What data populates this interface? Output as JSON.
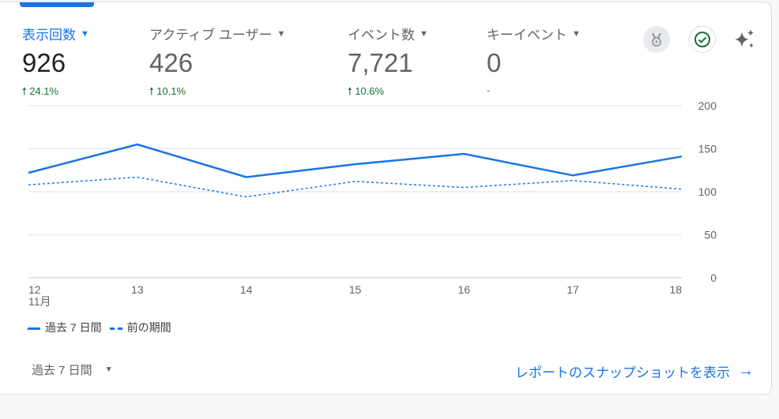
{
  "metrics": [
    {
      "label": "表示回数",
      "value": "926",
      "change": "24.1%",
      "direction": "up"
    },
    {
      "label": "アクティブ ユーザー",
      "value": "426",
      "change": "10.1%",
      "direction": "up"
    },
    {
      "label": "イベント数",
      "value": "7,721",
      "change": "10.6%",
      "direction": "up"
    },
    {
      "label": "キーイベント",
      "value": "0",
      "change": "-",
      "direction": "none"
    }
  ],
  "icons": [
    "medal-icon",
    "check-circle-icon",
    "sparkle-icon"
  ],
  "colors": {
    "accent": "#1a73e8",
    "positive": "#137333"
  },
  "chart_data": {
    "type": "line",
    "categories": [
      "12",
      "13",
      "14",
      "15",
      "16",
      "17",
      "18"
    ],
    "x_sublabel": "11月",
    "ylim": [
      0,
      200
    ],
    "yticks": [
      "0",
      "50",
      "100",
      "150",
      "200"
    ],
    "series": [
      {
        "name": "過去 7 日間",
        "style": "solid",
        "values": [
          122,
          155,
          117,
          132,
          144,
          119,
          141
        ]
      },
      {
        "name": "前の期間",
        "style": "dashed",
        "values": [
          108,
          117,
          94,
          112,
          105,
          113,
          103
        ]
      }
    ],
    "legend": "bottom-left"
  },
  "footer": {
    "range_label": "過去 7 日間",
    "link_label": "レポートのスナップショットを表示"
  }
}
